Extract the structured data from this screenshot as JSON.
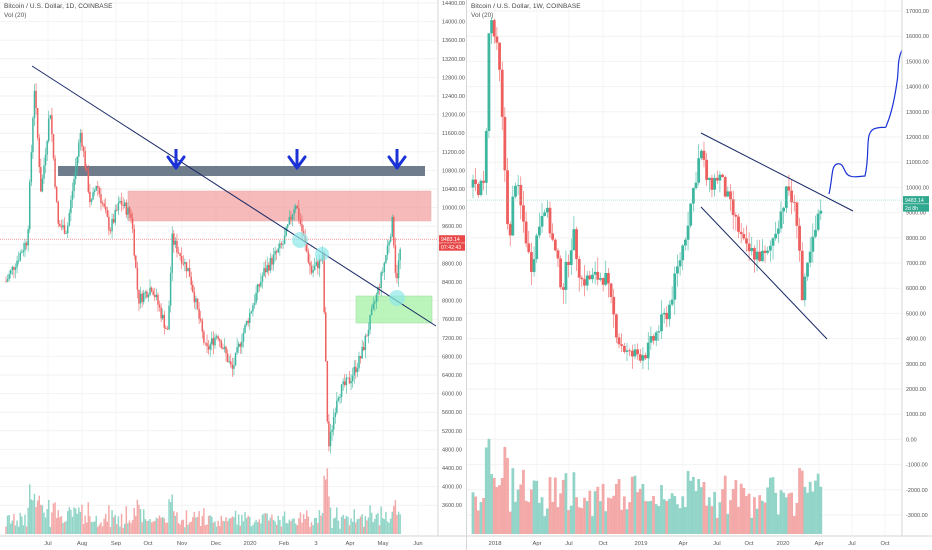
{
  "chart_data": [
    {
      "type": "candlestick",
      "symbol": "Bitcoin / U.S. Dollar, 1D, COINBASE",
      "indicator": "Vol (20)",
      "timeframe": "1D",
      "x_tick_labels": [
        "Jul",
        "Aug",
        "Sep",
        "Oct",
        "Nov",
        "Dec",
        "2020",
        "Feb",
        "3",
        "Apr",
        "May",
        "Jun"
      ],
      "y_tick_labels": [
        "14400.00",
        "14000.00",
        "13600.00",
        "13200.00",
        "12800.00",
        "12400.00",
        "12000.00",
        "11600.00",
        "11200.00",
        "10800.00",
        "10400.00",
        "10000.00",
        "9600.00",
        "9200.00",
        "8800.00",
        "8400.00",
        "8000.00",
        "7600.00",
        "7200.00",
        "6800.00",
        "6400.00",
        "6000.00",
        "5600.00",
        "5200.00",
        "4800.00",
        "4400.00",
        "4000.00",
        "3600.00"
      ],
      "price_labels": [
        "9483.14",
        "07:42:43"
      ],
      "ylim": [
        3300,
        14600
      ],
      "close_path": [
        [
          "2019-06-01",
          8600
        ],
        [
          "2019-06-20",
          9500
        ],
        [
          "2019-06-26",
          12800
        ],
        [
          "2019-07-02",
          10500
        ],
        [
          "2019-07-10",
          12300
        ],
        [
          "2019-07-17",
          9800
        ],
        [
          "2019-07-25",
          9700
        ],
        [
          "2019-08-06",
          11800
        ],
        [
          "2019-08-15",
          10200
        ],
        [
          "2019-08-20",
          10700
        ],
        [
          "2019-09-01",
          9700
        ],
        [
          "2019-09-10",
          10300
        ],
        [
          "2019-09-20",
          10000
        ],
        [
          "2019-09-26",
          8200
        ],
        [
          "2019-10-08",
          8500
        ],
        [
          "2019-10-22",
          7500
        ],
        [
          "2019-10-26",
          9500
        ],
        [
          "2019-11-10",
          8800
        ],
        [
          "2019-11-25",
          7100
        ],
        [
          "2019-12-05",
          7500
        ],
        [
          "2019-12-18",
          6700
        ],
        [
          "2019-12-25",
          7300
        ],
        [
          "2020-01-15",
          8800
        ],
        [
          "2020-02-01",
          9400
        ],
        [
          "2020-02-12",
          10300
        ],
        [
          "2020-02-26",
          8800
        ],
        [
          "2020-03-07",
          9100
        ],
        [
          "2020-03-12",
          5000
        ],
        [
          "2020-03-20",
          6200
        ],
        [
          "2020-03-31",
          6500
        ],
        [
          "2020-04-10",
          7000
        ],
        [
          "2020-04-29",
          8800
        ],
        [
          "2020-05-08",
          9900
        ],
        [
          "2020-05-11",
          8600
        ],
        [
          "2020-05-16",
          9500
        ]
      ],
      "annotations": [
        {
          "type": "trendline",
          "points": [
            [
              "2019-06-26",
              12800
            ],
            [
              "2020-06-05",
              7800
            ]
          ]
        },
        {
          "type": "resistance-band",
          "color": "#5f6e7f",
          "range": [
            10700,
            10900
          ]
        },
        {
          "type": "supply-zone",
          "color": "#f4a3a3",
          "range": [
            9850,
            10500
          ]
        },
        {
          "type": "demand-zone",
          "color": "#a6f2a6",
          "range": [
            7800,
            8300
          ]
        },
        {
          "type": "arrow-down",
          "color": "#1a32d6",
          "count": 3
        },
        {
          "type": "circle",
          "color": "#8ee8e8",
          "count": 3
        }
      ]
    },
    {
      "type": "candlestick",
      "symbol": "Bitcoin / U.S. Dollar, 1W, COINBASE",
      "indicator": "Vol (20)",
      "timeframe": "1W",
      "x_tick_labels": [
        "2018",
        "Apr",
        "Jul",
        "Oct",
        "2019",
        "Apr",
        "Jul",
        "Oct",
        "2020",
        "Apr",
        "Jul",
        "Oct"
      ],
      "y_tick_labels": [
        "17000.00",
        "16000.00",
        "15000.00",
        "14000.00",
        "13000.00",
        "12000.00",
        "11000.00",
        "10000.00",
        "9000.00",
        "8000.00",
        "7000.00",
        "6000.00",
        "5000.00",
        "4000.00",
        "3000.00",
        "2000.00",
        "1000.00",
        "0.00",
        "-1000.00",
        "-2000.00",
        "-3000.00"
      ],
      "price_labels": [
        "9483.14",
        "2d 8h"
      ],
      "close_path": [
        [
          "2017-12-01",
          10000
        ],
        [
          "2017-12-15",
          17000
        ],
        [
          "2018-01-08",
          15000
        ],
        [
          "2018-02-05",
          7500
        ],
        [
          "2018-02-19",
          10500
        ],
        [
          "2018-03-19",
          8200
        ],
        [
          "2018-04-02",
          6800
        ],
        [
          "2018-05-07",
          9500
        ],
        [
          "2018-06-25",
          6000
        ],
        [
          "2018-07-23",
          8200
        ],
        [
          "2018-08-13",
          6300
        ],
        [
          "2018-10-15",
          6500
        ],
        [
          "2018-11-19",
          4000
        ],
        [
          "2018-12-17",
          3300
        ],
        [
          "2019-02-04",
          3500
        ],
        [
          "2019-04-01",
          5200
        ],
        [
          "2019-05-13",
          8000
        ],
        [
          "2019-06-24",
          11500
        ],
        [
          "2019-07-15",
          10000
        ],
        [
          "2019-08-12",
          10500
        ],
        [
          "2019-10-21",
          7500
        ],
        [
          "2019-12-16",
          7200
        ],
        [
          "2020-02-10",
          10000
        ],
        [
          "2020-03-09",
          8500
        ],
        [
          "2020-03-16",
          5300
        ],
        [
          "2020-04-06",
          7200
        ],
        [
          "2020-05-11",
          9500
        ]
      ],
      "projection_path": [
        [
          "2020-05-11",
          9500
        ],
        [
          "2020-06-08",
          11000
        ],
        [
          "2020-07-06",
          10500
        ],
        [
          "2020-08-03",
          12200
        ],
        [
          "2020-08-31",
          12400
        ],
        [
          "2020-09-28",
          14500
        ],
        [
          "2020-10-12",
          15400
        ]
      ],
      "annotations": [
        {
          "type": "trendline",
          "points": [
            [
              "2019-06-10",
              12000
            ],
            [
              "2020-05-25",
              9000
            ]
          ]
        },
        {
          "type": "trendline",
          "points": [
            [
              "2019-05-13",
              9000
            ],
            [
              "2020-05-11",
              4200
            ]
          ]
        },
        {
          "type": "horizontal-line",
          "value": 9483.14
        }
      ]
    }
  ]
}
